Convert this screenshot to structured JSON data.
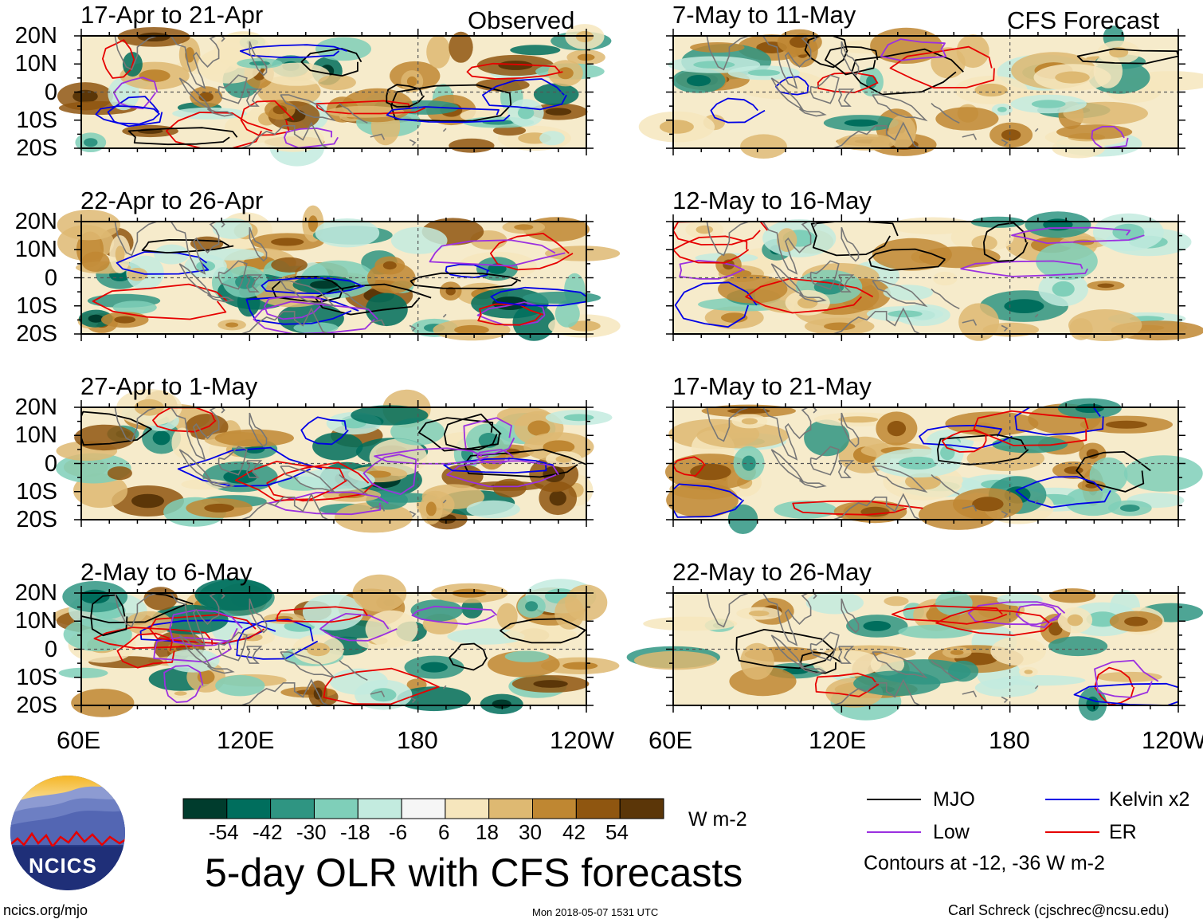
{
  "colors": {
    "olr_levels": [
      "#003c2d",
      "#006e5d",
      "#2f9582",
      "#7fcfb9",
      "#c3ebdf",
      "#f6f6f6",
      "#f6e6bd",
      "#deb972",
      "#bf8732",
      "#8f5610",
      "#5b3608"
    ],
    "mjo": "#000000",
    "kelvin": "#0000e6",
    "low": "#9b30e0",
    "er": "#e60000",
    "coast": "#777777"
  },
  "chart_data": {
    "type": "heatmap",
    "title": "5-day OLR with CFS forecasts",
    "variable": "OLR anomaly",
    "units": "W m-2",
    "colorbar_ticks": [
      "-54",
      "-42",
      "-30",
      "-18",
      "-6",
      "6",
      "18",
      "30",
      "42",
      "54"
    ],
    "lat_labels": [
      "20N",
      "10N",
      "0",
      "10S",
      "20S"
    ],
    "lon_labels": [
      "60E",
      "120E",
      "180",
      "120W"
    ],
    "lat_range": [
      -20,
      20
    ],
    "lon_range": [
      60,
      240
    ],
    "left_column_label": "Observed",
    "right_column_label": "CFS Forecast",
    "left_panels": [
      "17-Apr to 21-Apr",
      "22-Apr to 26-Apr",
      "27-Apr to 1-May",
      "2-May to 6-May"
    ],
    "right_panels": [
      "7-May to 11-May",
      "12-May to 16-May",
      "17-May to 21-May",
      "22-May to 26-May"
    ],
    "legend": [
      {
        "name": "MJO",
        "color": "#000000"
      },
      {
        "name": "Kelvin x2",
        "color": "#0000e6"
      },
      {
        "name": "Low",
        "color": "#9b30e0"
      },
      {
        "name": "ER",
        "color": "#e60000"
      }
    ],
    "contour_note": "Contours at -12, -36 W m-2"
  },
  "footer": {
    "logo_text": "NCICS",
    "url": "ncics.org/mjo",
    "timestamp": "Mon 2018-05-07 1531 UTC",
    "author": "Carl Schreck (cjschrec@ncsu.edu)"
  }
}
